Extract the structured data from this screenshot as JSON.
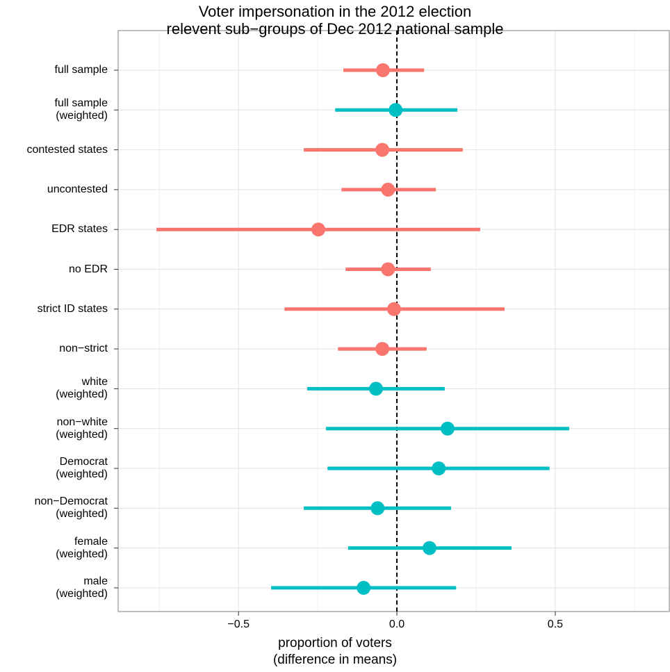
{
  "chart_data": {
    "type": "dotrange",
    "title": "Voter impersonation in the 2012 election\nrelevent sub−groups of Dec 2012 national sample",
    "x_label": "proportion of voters\n(difference in means)",
    "categories": [
      "full sample",
      "full sample\n(weighted)",
      "contested states",
      "uncontested",
      "EDR states",
      "no EDR",
      "strict ID states",
      "non−strict",
      "white\n(weighted)",
      "non−white\n(weighted)",
      "Democrat\n(weighted)",
      "non−Democrat\n(weighted)",
      "female\n(weighted)",
      "male\n(weighted)"
    ],
    "points": [
      -0.044,
      -0.004,
      -0.046,
      -0.028,
      -0.248,
      -0.028,
      -0.009,
      -0.046,
      -0.066,
      0.16,
      0.132,
      -0.061,
      0.103,
      -0.105
    ],
    "lower": [
      -0.169,
      -0.195,
      -0.294,
      -0.175,
      -0.759,
      -0.162,
      -0.355,
      -0.186,
      -0.283,
      -0.224,
      -0.219,
      -0.294,
      -0.154,
      -0.397
    ],
    "upper": [
      0.086,
      0.191,
      0.208,
      0.123,
      0.263,
      0.107,
      0.34,
      0.094,
      0.151,
      0.544,
      0.482,
      0.171,
      0.362,
      0.187
    ],
    "colors": [
      "#f8766d",
      "#00bfc4",
      "#f8766d",
      "#f8766d",
      "#f8766d",
      "#f8766d",
      "#f8766d",
      "#f8766d",
      "#00bfc4",
      "#00bfc4",
      "#00bfc4",
      "#00bfc4",
      "#00bfc4",
      "#00bfc4"
    ],
    "xlim": [
      -0.88,
      0.86
    ],
    "xticks": [
      {
        "value": -0.5,
        "label": "−0.5"
      },
      {
        "value": 0,
        "label": "0.0"
      },
      {
        "value": 0.5,
        "label": "0.5"
      }
    ],
    "x_minor_grid": [
      -0.75,
      -0.25,
      0.25,
      0.75
    ],
    "reference_line": 0,
    "grid": true
  }
}
